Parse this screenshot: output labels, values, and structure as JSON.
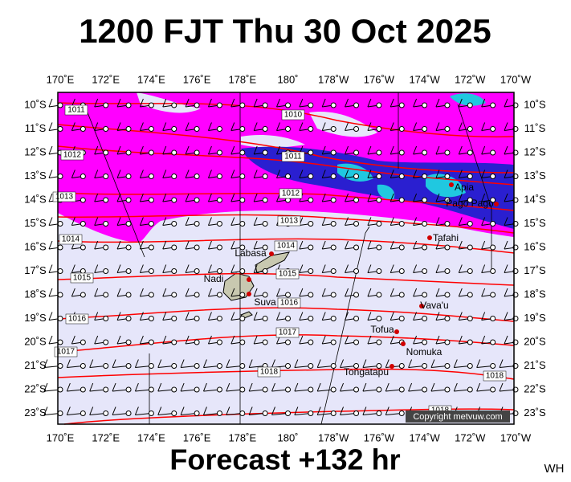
{
  "header": {
    "title": "1200 FJT Thu 30 Oct 2025"
  },
  "longitude_labels": [
    "170˚E",
    "172˚E",
    "174˚E",
    "176˚E",
    "178˚E",
    "180˚",
    "178˚W",
    "176˚W",
    "174˚W",
    "172˚W",
    "170˚W"
  ],
  "latitude_labels": [
    "10˚S",
    "11˚S",
    "12˚S",
    "13˚S",
    "14˚S",
    "15˚S",
    "16˚S",
    "17˚S",
    "18˚S",
    "19˚S",
    "20˚S",
    "21˚S",
    "22˚S",
    "23˚S"
  ],
  "isobar_labels": [
    "1011",
    "1010",
    "1012",
    "1011",
    "1013",
    "1012",
    "1013",
    "1014",
    "1014",
    "1015",
    "1015",
    "1016",
    "1016",
    "1017",
    "1017",
    "1018",
    "1018",
    "1018"
  ],
  "places": [
    "Labasa",
    "Nadi",
    "Suva",
    "Vava'u",
    "Tofua",
    "Nomuka",
    "Tongatapu",
    "Apia",
    "Pago Pago",
    "Tafahi"
  ],
  "footer": {
    "forecast": "Forecast +132 hr",
    "initials": "WH",
    "copyright": "Copyright metvuw.com"
  }
}
